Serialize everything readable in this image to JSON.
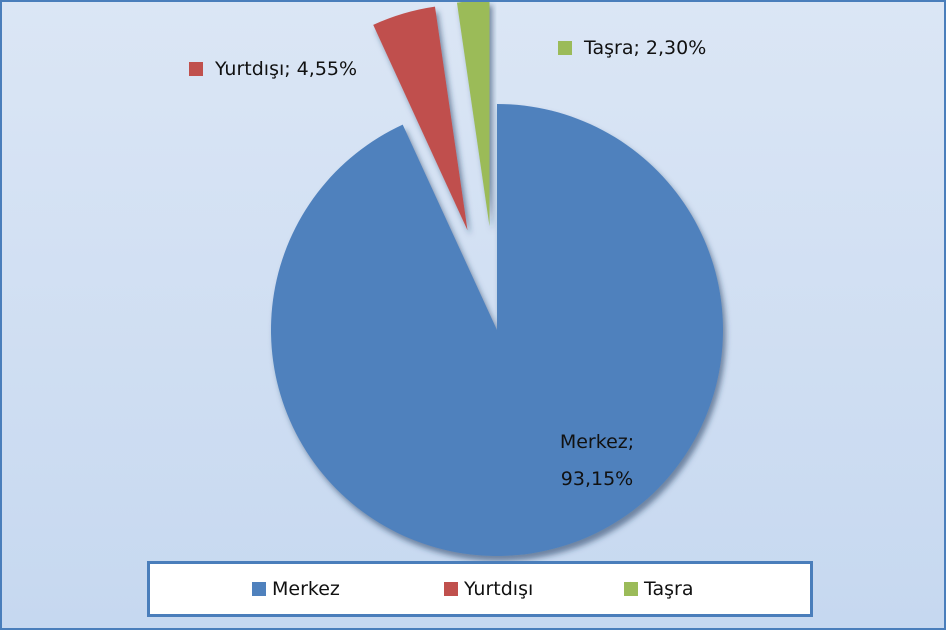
{
  "chart_data": {
    "type": "pie",
    "categories": [
      "Merkez",
      "Yurtdışı",
      "Taşra"
    ],
    "values": [
      93.15,
      4.55,
      2.3
    ],
    "value_labels": [
      "Merkez; 93,15%",
      "Yurtdışı; 4,55%",
      "Taşra; 2,30%"
    ],
    "colors": [
      "#4f81bd",
      "#c0504d",
      "#9bbb59"
    ],
    "legend": "bottom"
  }
}
